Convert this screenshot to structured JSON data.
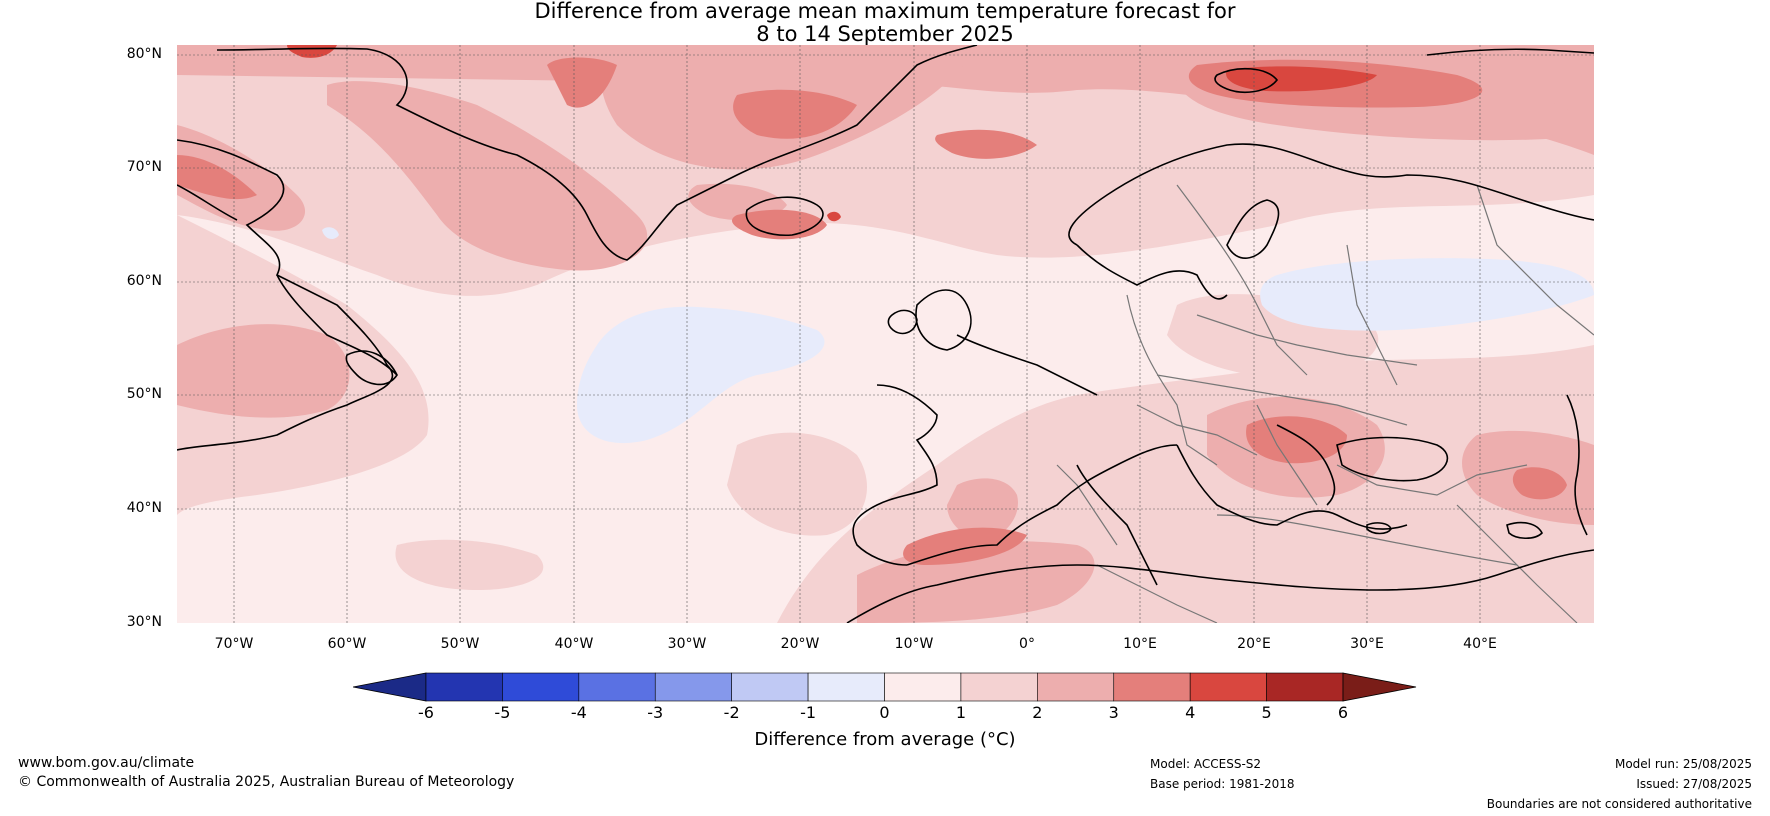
{
  "title": {
    "line1": "Difference from average mean maximum temperature forecast for",
    "line2": "8 to 14 September 2025"
  },
  "map": {
    "lat_labels": [
      "80°N",
      "70°N",
      "60°N",
      "50°N",
      "40°N",
      "30°N"
    ],
    "lon_labels": [
      "70°W",
      "60°W",
      "50°W",
      "40°W",
      "30°W",
      "20°W",
      "10°W",
      "0°",
      "10°E",
      "20°E",
      "30°E",
      "40°E"
    ],
    "lat_range": [
      30,
      81
    ],
    "lon_range": [
      -75,
      50
    ]
  },
  "colorbar": {
    "ticks": [
      "-6",
      "-5",
      "-4",
      "-3",
      "-2",
      "-1",
      "0",
      "1",
      "2",
      "3",
      "4",
      "5",
      "6"
    ],
    "label": "Difference from average (°C)",
    "under_color": "#1b2a87",
    "colors": [
      "#2335b1",
      "#2f4bd8",
      "#5a71e3",
      "#8598eb",
      "#c0c9f4",
      "#e7ebfb",
      "#fcecec",
      "#f4d2d2",
      "#edaeae",
      "#e47f7b",
      "#d9473f",
      "#a92725"
    ],
    "over_color": "#7a1d18"
  },
  "footer": {
    "website": "www.bom.gov.au/climate",
    "copyright": "© Commonwealth of Australia 2025, Australian Bureau of Meteorology",
    "model": "Model: ACCESS-S2",
    "base_period": "Base period: 1981-2018",
    "model_run": "Model run: 25/08/2025",
    "issued": "Issued: 27/08/2025",
    "disclaimer": "Boundaries are not considered authoritative"
  }
}
